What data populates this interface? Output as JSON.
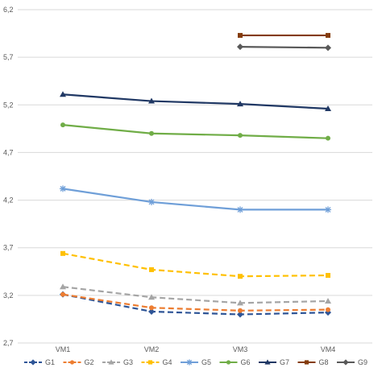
{
  "chart_data": {
    "type": "line",
    "title": "",
    "xlabel": "",
    "ylabel": "",
    "categories": [
      "VM1",
      "VM2",
      "VM3",
      "VM4"
    ],
    "ylim": [
      2.7,
      6.2
    ],
    "yticks": [
      "2,7",
      "3,2",
      "3,7",
      "4,2",
      "4,7",
      "5,2",
      "5,7",
      "6,2"
    ],
    "ytick_values": [
      2.7,
      3.2,
      3.7,
      4.2,
      4.7,
      5.2,
      5.7,
      6.2
    ],
    "grid": "horizontal",
    "legend_position": "bottom",
    "series": [
      {
        "name": "G1",
        "color": "#2e5597",
        "dash": "dashed",
        "marker": "diamond",
        "values": [
          3.21,
          3.03,
          3.0,
          3.02
        ]
      },
      {
        "name": "G2",
        "color": "#ed7d31",
        "dash": "dashed",
        "marker": "circle",
        "values": [
          3.21,
          3.07,
          3.04,
          3.05
        ]
      },
      {
        "name": "G3",
        "color": "#a5a5a5",
        "dash": "dashed",
        "marker": "triangle",
        "values": [
          3.29,
          3.18,
          3.12,
          3.14
        ]
      },
      {
        "name": "G4",
        "color": "#ffc000",
        "dash": "dashed",
        "marker": "square",
        "values": [
          3.64,
          3.47,
          3.4,
          3.41
        ]
      },
      {
        "name": "G5",
        "color": "#6f9fd8",
        "dash": "solid",
        "marker": "star",
        "values": [
          4.32,
          4.18,
          4.1,
          4.1
        ]
      },
      {
        "name": "G6",
        "color": "#70ad47",
        "dash": "solid",
        "marker": "circle",
        "values": [
          4.99,
          4.9,
          4.88,
          4.85
        ]
      },
      {
        "name": "G7",
        "color": "#203864",
        "dash": "solid",
        "marker": "triangle",
        "values": [
          5.31,
          5.24,
          5.21,
          5.16
        ]
      },
      {
        "name": "G8",
        "color": "#843c0c",
        "dash": "solid",
        "marker": "square",
        "values": [
          null,
          null,
          5.93,
          5.93
        ]
      },
      {
        "name": "G9",
        "color": "#595959",
        "dash": "solid",
        "marker": "diamond",
        "values": [
          null,
          null,
          5.81,
          5.8
        ]
      }
    ]
  }
}
